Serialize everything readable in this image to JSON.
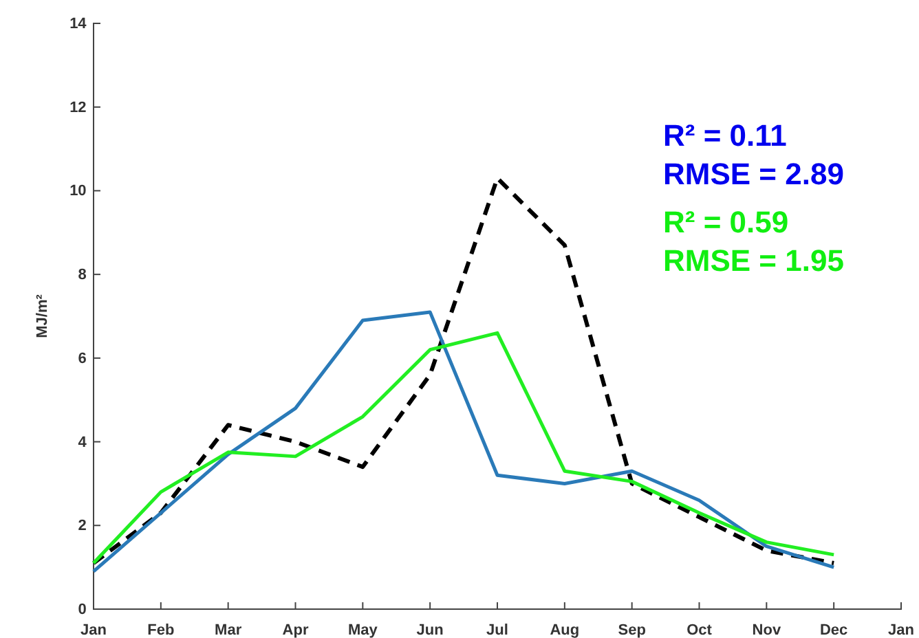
{
  "chart_data": {
    "type": "line",
    "ylabel": "MJ/m²",
    "categories": [
      "Jan",
      "Feb",
      "Mar",
      "Apr",
      "May",
      "Jun",
      "Jul",
      "Aug",
      "Sep",
      "Oct",
      "Nov",
      "Dec",
      "Jan"
    ],
    "ylim": [
      0,
      14
    ],
    "yticks": [
      0,
      2,
      4,
      6,
      8,
      10,
      12,
      14
    ],
    "grid": false,
    "series": [
      {
        "color": "#000000",
        "line_style": "dashed",
        "values": [
          1.1,
          2.3,
          4.4,
          4.0,
          3.4,
          5.6,
          10.3,
          8.7,
          3.0,
          2.2,
          1.4,
          1.1,
          null
        ]
      },
      {
        "color": "#2a7ab8",
        "line_style": "solid",
        "values": [
          0.9,
          2.3,
          3.7,
          4.8,
          6.9,
          7.1,
          3.2,
          3.0,
          3.3,
          2.6,
          1.5,
          1.0,
          null
        ]
      },
      {
        "color": "#22ee22",
        "line_style": "solid",
        "values": [
          1.1,
          2.8,
          3.75,
          3.65,
          4.6,
          6.2,
          6.6,
          3.3,
          3.05,
          2.3,
          1.6,
          1.3,
          null
        ]
      }
    ],
    "annotations": [
      "R² = 0.11",
      "RMSE = 2.89",
      "R² = 0.59",
      "RMSE = 1.95"
    ]
  }
}
